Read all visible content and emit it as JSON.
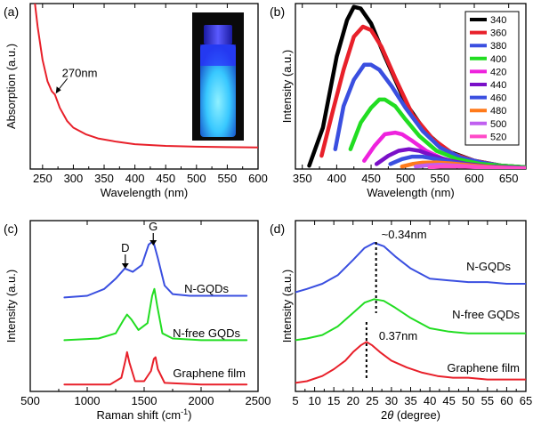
{
  "colors": {
    "red": "#e8202a",
    "blue": "#3a4fe0",
    "green": "#22dd22",
    "black": "#000000",
    "magenta": "#ee22dd",
    "purple": "#7a10c8",
    "orange": "#ff7a1a",
    "lightpurple": "#c060f0",
    "pink": "#ff4ac8",
    "vial_glow": "#38c8ff"
  },
  "chart_data": [
    {
      "panel": "(a)",
      "type": "line",
      "xlabel": "Wavelength (nm)",
      "ylabel": "Absorption (a.u.)",
      "xlim": [
        230,
        600
      ],
      "ylim": [
        0,
        1.0
      ],
      "xticks": [
        250,
        300,
        350,
        400,
        450,
        500,
        550,
        600
      ],
      "annotations": [
        {
          "text": "270nm",
          "x": 270,
          "y": 0.45
        }
      ],
      "inset": "photo of glowing vial",
      "series": [
        {
          "color": "red",
          "x": [
            236,
            242,
            250,
            258,
            265,
            270,
            278,
            290,
            300,
            320,
            340,
            370,
            400,
            450,
            500,
            550,
            600
          ],
          "y": [
            1.05,
            0.86,
            0.66,
            0.53,
            0.47,
            0.45,
            0.37,
            0.29,
            0.25,
            0.21,
            0.185,
            0.165,
            0.15,
            0.14,
            0.135,
            0.132,
            0.13
          ]
        }
      ]
    },
    {
      "panel": "(b)",
      "type": "line",
      "xlabel": "Wavelength (nm)",
      "ylabel": "Intensity (a.u.)",
      "xlim": [
        340,
        675
      ],
      "ylim": [
        0,
        1.0
      ],
      "xticks": [
        350,
        400,
        450,
        500,
        550,
        600,
        650
      ],
      "legend_position": "top-right",
      "series": [
        {
          "name": "340",
          "color": "black",
          "x": [
            360,
            380,
            400,
            415,
            425,
            435,
            450,
            470,
            500,
            530,
            560,
            600,
            640,
            675
          ],
          "y": [
            0.02,
            0.25,
            0.68,
            0.9,
            0.98,
            0.97,
            0.88,
            0.68,
            0.4,
            0.22,
            0.11,
            0.05,
            0.02,
            0.01
          ]
        },
        {
          "name": "360",
          "color": "red",
          "x": [
            378,
            395,
            410,
            425,
            438,
            450,
            465,
            485,
            510,
            540,
            570,
            600,
            640,
            675
          ],
          "y": [
            0.08,
            0.36,
            0.6,
            0.8,
            0.86,
            0.84,
            0.74,
            0.55,
            0.33,
            0.18,
            0.09,
            0.05,
            0.02,
            0.01
          ]
        },
        {
          "name": "380",
          "color": "blue",
          "x": [
            398,
            410,
            425,
            440,
            450,
            462,
            480,
            500,
            525,
            550,
            580,
            610,
            640,
            675
          ],
          "y": [
            0.12,
            0.38,
            0.54,
            0.63,
            0.63,
            0.6,
            0.5,
            0.37,
            0.23,
            0.13,
            0.07,
            0.04,
            0.02,
            0.01
          ]
        },
        {
          "name": "400",
          "color": "green",
          "x": [
            420,
            435,
            450,
            462,
            470,
            485,
            500,
            520,
            545,
            575,
            610,
            640,
            675
          ],
          "y": [
            0.12,
            0.28,
            0.37,
            0.42,
            0.42,
            0.38,
            0.3,
            0.2,
            0.11,
            0.06,
            0.03,
            0.02,
            0.01
          ]
        },
        {
          "name": "420",
          "color": "magenta",
          "x": [
            440,
            455,
            470,
            485,
            495,
            510,
            530,
            555,
            585,
            615,
            645,
            675
          ],
          "y": [
            0.05,
            0.14,
            0.21,
            0.22,
            0.21,
            0.17,
            0.11,
            0.06,
            0.03,
            0.015,
            0.01,
            0.005
          ]
        },
        {
          "name": "440",
          "color": "purple",
          "x": [
            458,
            475,
            490,
            505,
            520,
            540,
            565,
            590,
            620,
            650,
            675
          ],
          "y": [
            0.03,
            0.08,
            0.11,
            0.12,
            0.11,
            0.08,
            0.05,
            0.03,
            0.015,
            0.01,
            0.005
          ]
        },
        {
          "name": "460",
          "color": "blue",
          "x": [
            478,
            495,
            510,
            525,
            545,
            570,
            600,
            630,
            660,
            675
          ],
          "y": [
            0.03,
            0.06,
            0.075,
            0.075,
            0.06,
            0.04,
            0.02,
            0.01,
            0.005,
            0.003
          ]
        },
        {
          "name": "480",
          "color": "orange",
          "x": [
            495,
            510,
            525,
            545,
            570,
            600,
            630,
            660,
            675
          ],
          "y": [
            0.015,
            0.03,
            0.038,
            0.04,
            0.032,
            0.02,
            0.01,
            0.005,
            0.003
          ]
        },
        {
          "name": "500",
          "color": "lightpurple",
          "x": [
            515,
            530,
            550,
            575,
            605,
            640,
            675
          ],
          "y": [
            0.015,
            0.022,
            0.025,
            0.02,
            0.012,
            0.006,
            0.003
          ]
        },
        {
          "name": "520",
          "color": "pink",
          "x": [
            535,
            555,
            580,
            610,
            640,
            675
          ],
          "y": [
            0.01,
            0.016,
            0.016,
            0.011,
            0.006,
            0.003
          ]
        }
      ]
    },
    {
      "panel": "(c)",
      "type": "line",
      "xlabel": "Raman shift (cm⁻¹)",
      "ylabel": "Intensity (a.u.)",
      "xlim": [
        500,
        2500
      ],
      "ylim": [
        0,
        1.0
      ],
      "xticks": [
        500,
        1000,
        1500,
        2000,
        2500
      ],
      "annotations": [
        {
          "text": "D",
          "x": 1350
        },
        {
          "text": "G",
          "x": 1580
        }
      ],
      "series": [
        {
          "name": "N-GQDs",
          "color": "blue",
          "x": [
            800,
            1000,
            1150,
            1250,
            1330,
            1400,
            1480,
            1540,
            1580,
            1620,
            1680,
            1750,
            1900,
            2100,
            2400
          ],
          "y": [
            0.55,
            0.56,
            0.6,
            0.66,
            0.72,
            0.7,
            0.74,
            0.86,
            0.88,
            0.78,
            0.62,
            0.57,
            0.56,
            0.56,
            0.56
          ]
        },
        {
          "name": "N-free GQDs",
          "color": "green",
          "x": [
            800,
            1100,
            1250,
            1320,
            1350,
            1390,
            1450,
            1530,
            1570,
            1590,
            1615,
            1660,
            1750,
            2000,
            2400
          ],
          "y": [
            0.3,
            0.31,
            0.34,
            0.42,
            0.45,
            0.42,
            0.36,
            0.4,
            0.56,
            0.6,
            0.5,
            0.34,
            0.31,
            0.3,
            0.3
          ]
        },
        {
          "name": "Graphene film",
          "color": "red",
          "x": [
            800,
            1200,
            1300,
            1335,
            1350,
            1370,
            1420,
            1500,
            1560,
            1585,
            1600,
            1620,
            1680,
            2000,
            2400
          ],
          "y": [
            0.04,
            0.04,
            0.08,
            0.18,
            0.23,
            0.17,
            0.06,
            0.06,
            0.12,
            0.19,
            0.2,
            0.13,
            0.05,
            0.04,
            0.04
          ]
        }
      ]
    },
    {
      "panel": "(d)",
      "type": "line",
      "xlabel": "2θ (degree)",
      "ylabel": "Intensity (a.u.)",
      "xlim": [
        5,
        65
      ],
      "ylim": [
        0,
        1.0
      ],
      "xticks": [
        5,
        10,
        15,
        20,
        25,
        30,
        35,
        40,
        45,
        50,
        55,
        60,
        65
      ],
      "annotations": [
        {
          "text": "~0.34nm",
          "x": 26
        },
        {
          "text": "0.37nm",
          "x": 23.5
        }
      ],
      "series": [
        {
          "name": "N-GQDs",
          "color": "blue",
          "x": [
            5,
            8,
            12,
            16,
            20,
            23,
            25.5,
            28,
            31,
            35,
            40,
            45,
            50,
            55,
            60,
            65
          ],
          "y": [
            0.58,
            0.6,
            0.63,
            0.68,
            0.77,
            0.84,
            0.87,
            0.85,
            0.79,
            0.72,
            0.66,
            0.65,
            0.64,
            0.64,
            0.63,
            0.63
          ]
        },
        {
          "name": "N-free GQDs",
          "color": "green",
          "x": [
            5,
            8,
            12,
            16,
            20,
            23,
            25.5,
            28,
            31,
            35,
            40,
            45,
            50,
            55,
            60,
            65
          ],
          "y": [
            0.3,
            0.31,
            0.33,
            0.38,
            0.46,
            0.52,
            0.54,
            0.53,
            0.49,
            0.43,
            0.37,
            0.35,
            0.34,
            0.34,
            0.34,
            0.34
          ]
        },
        {
          "name": "Graphene film",
          "color": "red",
          "x": [
            5,
            8,
            12,
            15,
            18,
            20,
            22,
            23.5,
            25,
            27,
            30,
            34,
            38,
            42,
            46,
            50,
            55,
            60,
            65
          ],
          "y": [
            0.05,
            0.06,
            0.09,
            0.13,
            0.18,
            0.23,
            0.27,
            0.29,
            0.27,
            0.23,
            0.18,
            0.14,
            0.11,
            0.09,
            0.08,
            0.08,
            0.07,
            0.07,
            0.07
          ]
        }
      ]
    }
  ]
}
